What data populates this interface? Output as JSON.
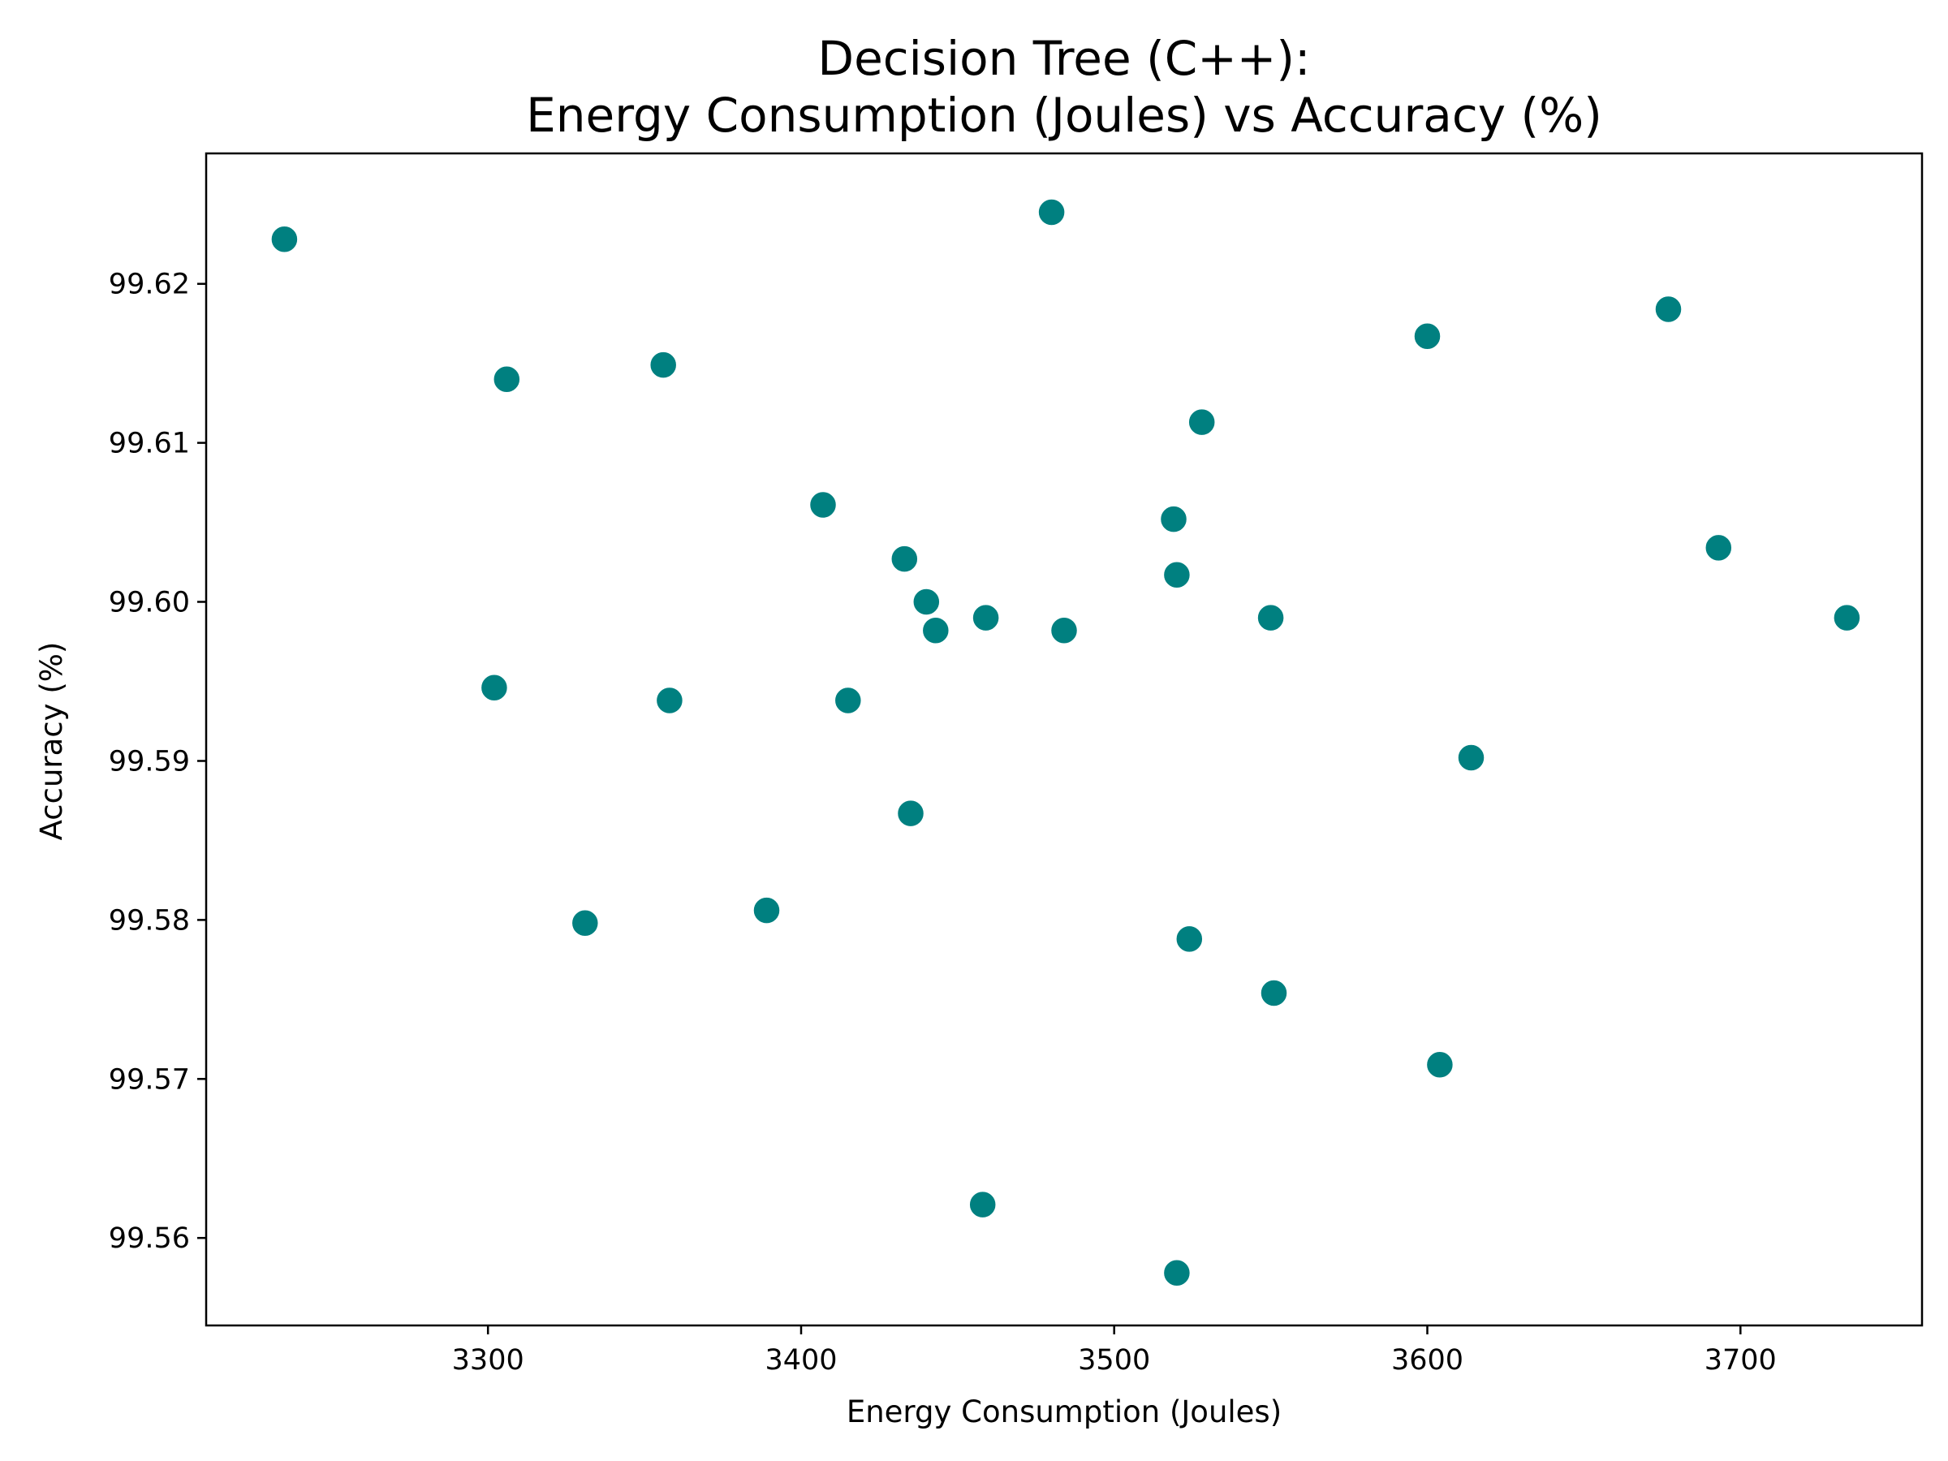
{
  "chart_data": {
    "type": "scatter",
    "title_lines": [
      "Decision Tree (C++):",
      "Energy Consumption (Joules) vs Accuracy (%)"
    ],
    "xlabel": "Energy Consumption (Joules)",
    "ylabel": "Accuracy (%)",
    "xlim": [
      3210,
      3758
    ],
    "ylim": [
      99.5545,
      99.6282
    ],
    "xticks": [
      3300,
      3400,
      3500,
      3600,
      3700
    ],
    "xtick_labels": [
      "3300",
      "3400",
      "3500",
      "3600",
      "3700"
    ],
    "yticks": [
      99.56,
      99.57,
      99.58,
      99.59,
      99.6,
      99.61,
      99.62
    ],
    "ytick_labels": [
      "99.56",
      "99.57",
      "99.58",
      "99.59",
      "99.60",
      "99.61",
      "99.62"
    ],
    "grid": false,
    "legend": "none",
    "marker_color": "#008080",
    "marker_edge_color": "#ffffff",
    "points": [
      {
        "x": 3235,
        "y": 99.6228
      },
      {
        "x": 3480,
        "y": 99.6245
      },
      {
        "x": 3677,
        "y": 99.6184
      },
      {
        "x": 3600,
        "y": 99.6167
      },
      {
        "x": 3306,
        "y": 99.614
      },
      {
        "x": 3356,
        "y": 99.6149
      },
      {
        "x": 3528,
        "y": 99.6113
      },
      {
        "x": 3407,
        "y": 99.6061
      },
      {
        "x": 3519,
        "y": 99.6052
      },
      {
        "x": 3693,
        "y": 99.6034
      },
      {
        "x": 3433,
        "y": 99.6027
      },
      {
        "x": 3520,
        "y": 99.6017
      },
      {
        "x": 3440,
        "y": 99.6
      },
      {
        "x": 3443,
        "y": 99.5982
      },
      {
        "x": 3459,
        "y": 99.599
      },
      {
        "x": 3484,
        "y": 99.5982
      },
      {
        "x": 3550,
        "y": 99.599
      },
      {
        "x": 3734,
        "y": 99.599
      },
      {
        "x": 3302,
        "y": 99.5946
      },
      {
        "x": 3358,
        "y": 99.5938
      },
      {
        "x": 3415,
        "y": 99.5938
      },
      {
        "x": 3614,
        "y": 99.5902
      },
      {
        "x": 3435,
        "y": 99.5867
      },
      {
        "x": 3389,
        "y": 99.5806
      },
      {
        "x": 3331,
        "y": 99.5798
      },
      {
        "x": 3524,
        "y": 99.5788
      },
      {
        "x": 3551,
        "y": 99.5754
      },
      {
        "x": 3604,
        "y": 99.5709
      },
      {
        "x": 3458,
        "y": 99.5621
      },
      {
        "x": 3520,
        "y": 99.5578
      }
    ]
  }
}
